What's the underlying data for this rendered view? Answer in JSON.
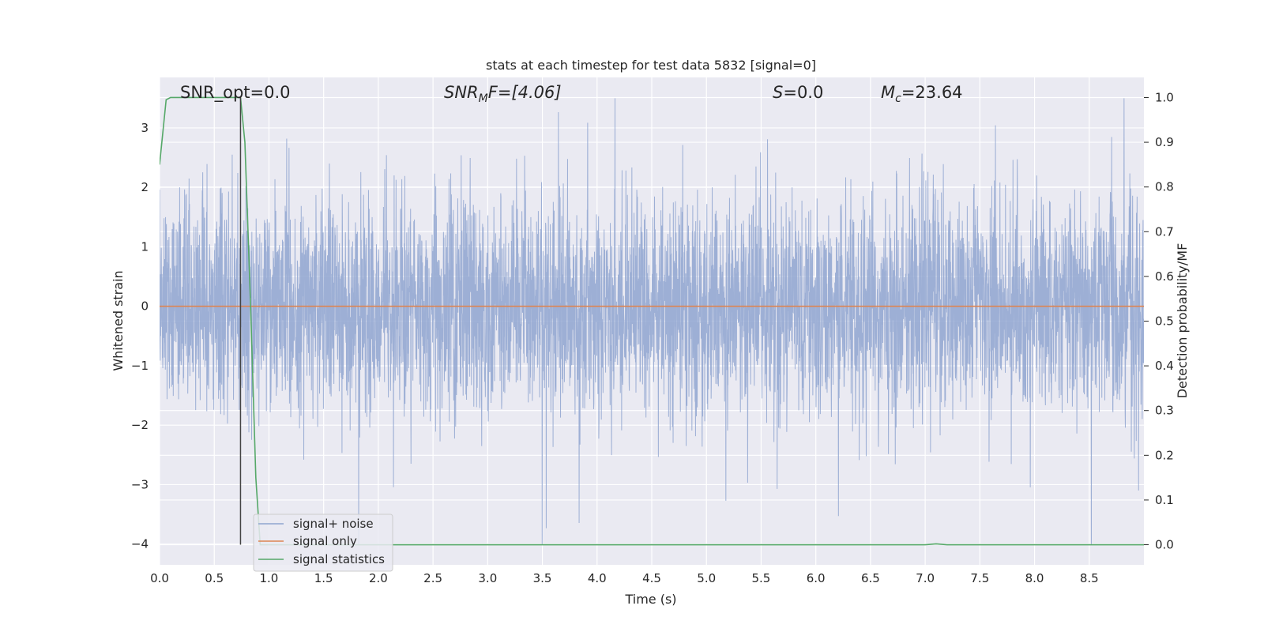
{
  "chart_data": {
    "type": "line",
    "title": "stats at each timestep for test data 5832 [signal=0]",
    "xlabel": "Time (s)",
    "ylabel": "Whitened strain",
    "ylabel_right": "Detection probability/MF",
    "xlim": [
      0.0,
      9.0
    ],
    "ylim": [
      -4.35,
      3.85
    ],
    "ylim_right": [
      -0.045,
      1.045
    ],
    "x_ticks": [
      "0.0",
      "0.5",
      "1.0",
      "1.5",
      "2.0",
      "2.5",
      "3.0",
      "3.5",
      "4.0",
      "4.5",
      "5.0",
      "5.5",
      "6.0",
      "6.5",
      "7.0",
      "7.5",
      "8.0",
      "8.5"
    ],
    "y_ticks": [
      "3",
      "2",
      "1",
      "0",
      "−1",
      "−2",
      "−3",
      "−4"
    ],
    "y_ticks_right": [
      "1.0",
      "0.9",
      "0.8",
      "0.7",
      "0.6",
      "0.5",
      "0.4",
      "0.3",
      "0.2",
      "0.1",
      "0.0"
    ],
    "grid": true,
    "legend_position": "lower-left",
    "annotations": {
      "snr_opt": "SNR_opt=0.0",
      "snr_mf_main": "SNR",
      "snr_mf_sub": "M",
      "snr_mf_rest": "F=[4.06]",
      "s_main": "S",
      "s_rest": "=0.0",
      "mc_main": "M",
      "mc_sub": "c",
      "mc_rest": "=23.64"
    },
    "marker_line_x": 0.74,
    "series": [
      {
        "name": "signal+ noise",
        "color": "#8fa5d0",
        "axis": "left",
        "kind": "noise",
        "sample_rate": 512,
        "std": 0.9,
        "seed": 5832
      },
      {
        "name": "signal only",
        "color": "#dd8452",
        "axis": "left",
        "x": [
          0.0,
          9.0
        ],
        "y": [
          0.0,
          0.0
        ]
      },
      {
        "name": "signal statistics",
        "color": "#55a868",
        "axis": "right",
        "x": [
          0.0,
          0.06,
          0.1,
          0.2,
          0.5,
          0.74,
          0.78,
          0.83,
          0.88,
          0.92,
          1.0,
          7.0,
          7.1,
          7.2,
          9.0
        ],
        "y": [
          0.85,
          0.995,
          1.0,
          1.0,
          1.0,
          1.0,
          0.9,
          0.55,
          0.15,
          0.0,
          0.0,
          0.0,
          0.002,
          0.0,
          0.0
        ]
      }
    ]
  }
}
